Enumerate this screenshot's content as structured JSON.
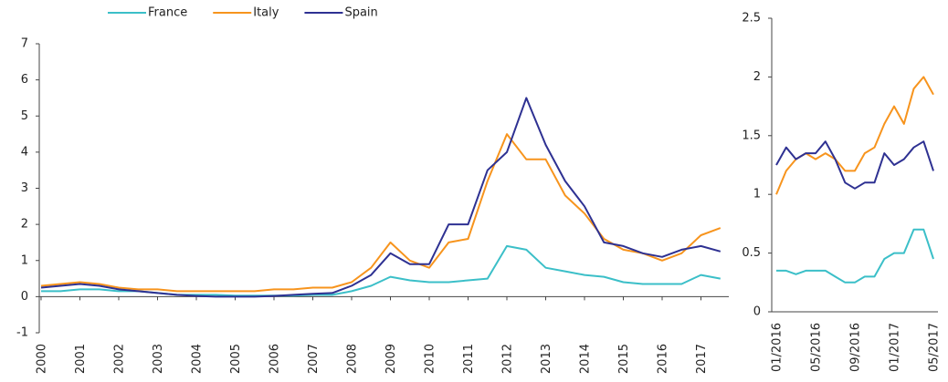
{
  "chart_data": [
    {
      "type": "line",
      "x": [
        2000,
        2000.5,
        2001,
        2001.5,
        2002,
        2002.5,
        2003,
        2003.5,
        2004,
        2004.5,
        2005,
        2005.5,
        2006,
        2006.5,
        2007,
        2007.5,
        2008,
        2008.5,
        2009,
        2009.5,
        2010,
        2010.5,
        2011,
        2011.5,
        2012,
        2012.5,
        2013,
        2013.5,
        2014,
        2014.5,
        2015,
        2015.5,
        2016,
        2016.5,
        2017,
        2017.5
      ],
      "series": [
        {
          "name": "France",
          "color": "#3bbfc8",
          "values": [
            0.15,
            0.15,
            0.2,
            0.2,
            0.15,
            0.15,
            0.1,
            0.05,
            0.05,
            0.05,
            0.03,
            0.03,
            0.03,
            0.03,
            0.05,
            0.05,
            0.15,
            0.3,
            0.55,
            0.45,
            0.4,
            0.4,
            0.45,
            0.5,
            1.4,
            1.3,
            0.8,
            0.7,
            0.6,
            0.55,
            0.4,
            0.35,
            0.35,
            0.35,
            0.6,
            0.5
          ]
        },
        {
          "name": "Italy",
          "color": "#f7941d",
          "values": [
            0.3,
            0.35,
            0.4,
            0.35,
            0.25,
            0.2,
            0.2,
            0.15,
            0.15,
            0.15,
            0.15,
            0.15,
            0.2,
            0.2,
            0.25,
            0.25,
            0.4,
            0.8,
            1.5,
            1.0,
            0.8,
            1.5,
            1.6,
            3.2,
            4.5,
            3.8,
            3.8,
            2.8,
            2.3,
            1.6,
            1.3,
            1.2,
            1.0,
            1.2,
            1.7,
            1.9
          ]
        },
        {
          "name": "Spain",
          "color": "#2e3192",
          "values": [
            0.25,
            0.3,
            0.35,
            0.3,
            0.2,
            0.15,
            0.1,
            0.05,
            0.02,
            0.0,
            0.0,
            0.0,
            0.02,
            0.05,
            0.08,
            0.1,
            0.3,
            0.6,
            1.2,
            0.9,
            0.9,
            2.0,
            2.0,
            3.5,
            4.0,
            5.5,
            4.2,
            3.2,
            2.5,
            1.5,
            1.4,
            1.2,
            1.1,
            1.3,
            1.4,
            1.25
          ]
        }
      ],
      "xlim": [
        2000,
        2017.6
      ],
      "xticks": [
        2000,
        2001,
        2002,
        2003,
        2004,
        2005,
        2006,
        2007,
        2008,
        2009,
        2010,
        2011,
        2012,
        2013,
        2014,
        2015,
        2016,
        2017
      ],
      "ylim": [
        -1,
        7
      ],
      "yticks": [
        -1,
        0,
        1,
        2,
        3,
        4,
        5,
        6,
        7
      ]
    },
    {
      "type": "line",
      "categories": [
        "01/2016",
        null,
        null,
        null,
        "05/2016",
        null,
        null,
        null,
        "09/2016",
        null,
        null,
        null,
        "01/2017",
        null,
        null,
        null,
        "05/2017"
      ],
      "series": [
        {
          "color": "#3bbfc8",
          "values": [
            0.35,
            0.35,
            0.32,
            0.35,
            0.35,
            0.35,
            0.3,
            0.25,
            0.25,
            0.3,
            0.3,
            0.45,
            0.5,
            0.5,
            0.7,
            0.7,
            0.45
          ]
        },
        {
          "color": "#f7941d",
          "values": [
            1.0,
            1.2,
            1.3,
            1.35,
            1.3,
            1.35,
            1.3,
            1.2,
            1.2,
            1.35,
            1.4,
            1.6,
            1.75,
            1.6,
            1.9,
            2.0,
            1.85
          ]
        },
        {
          "color": "#2e3192",
          "values": [
            1.25,
            1.4,
            1.3,
            1.35,
            1.35,
            1.45,
            1.3,
            1.1,
            1.05,
            1.1,
            1.1,
            1.35,
            1.25,
            1.3,
            1.4,
            1.45,
            1.2
          ]
        }
      ],
      "ylim": [
        0,
        2.5
      ],
      "yticks": [
        0,
        0.5,
        1,
        1.5,
        2,
        2.5
      ]
    }
  ]
}
